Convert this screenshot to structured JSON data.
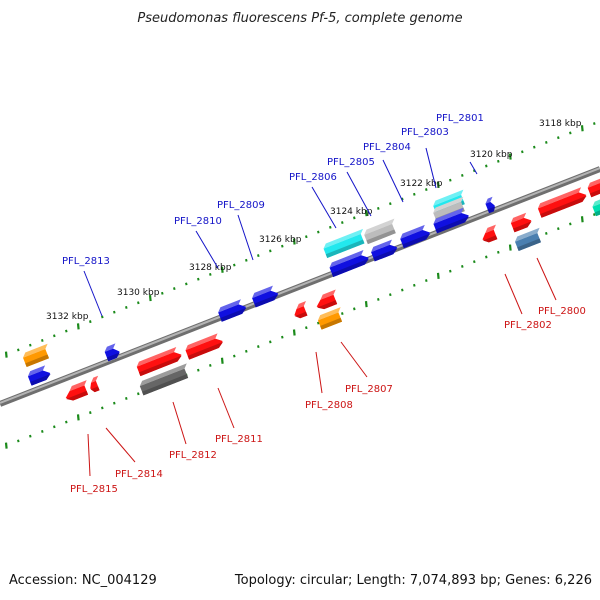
{
  "title": "Pseudomonas fluorescens Pf-5, complete genome",
  "footer": {
    "accession": "Accession: NC_004129",
    "summary": "Topology: circular; Length: 7,074,893 bp; Genes: 6,226"
  },
  "colors": {
    "backbone": "#888888",
    "tick": "#1a8a1a",
    "label_top": "#1414c8",
    "label_bottom": "#cc1414",
    "red": "#ff1010",
    "blue": "#1010e0",
    "cyan": "#22e8ee",
    "gray": "#bcbcbc",
    "darkgray": "#666666",
    "orange": "#ff9900",
    "steel": "#4a7fb0",
    "teal": "#00e0b0"
  },
  "scale_labels": [
    "3118 kbp",
    "3120 kbp",
    "3122 kbp",
    "3124 kbp",
    "3126 kbp",
    "3128 kbp",
    "3130 kbp",
    "3132 kbp"
  ],
  "top_labels": [
    "PFL_2801",
    "PFL_2803",
    "PFL_2804",
    "PFL_2805",
    "PFL_2806",
    "PFL_2809",
    "PFL_2810",
    "PFL_2813"
  ],
  "bottom_labels": [
    "PFL_2800",
    "PFL_2802",
    "PFL_2807",
    "PFL_2808",
    "PFL_2811",
    "PFL_2812",
    "PFL_2814",
    "PFL_2815"
  ]
}
